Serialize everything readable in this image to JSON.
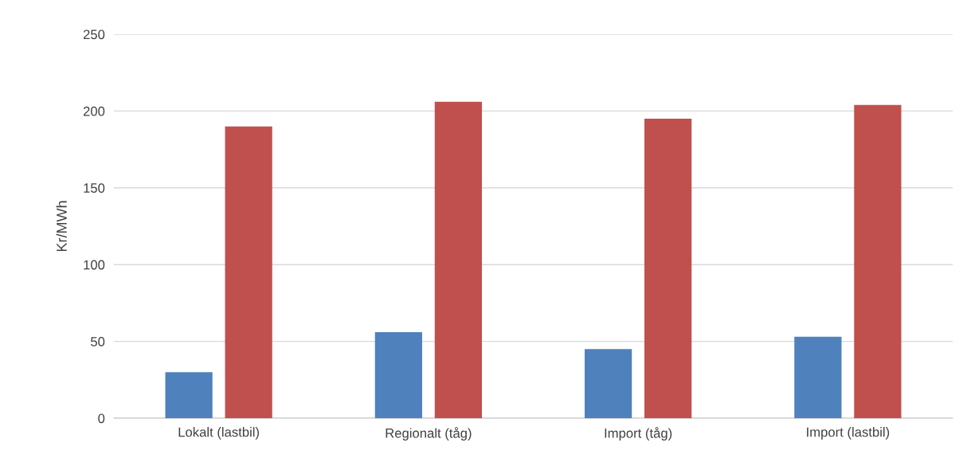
{
  "chart_data": {
    "type": "bar",
    "ylabel": "Kr/MWh",
    "categories": [
      "Lokalt (lastbil)",
      "Regionalt (tåg)",
      "Import (tåg)",
      "Import (lastbil)"
    ],
    "series": [
      {
        "color": "#4f81bd",
        "values": [
          30,
          56,
          45,
          53
        ]
      },
      {
        "color": "#c0504d",
        "values": [
          190,
          206,
          195,
          204
        ]
      }
    ],
    "ylim": [
      0,
      250
    ],
    "yticks": [
      0,
      50,
      100,
      150,
      200,
      250
    ],
    "grid": "y"
  }
}
